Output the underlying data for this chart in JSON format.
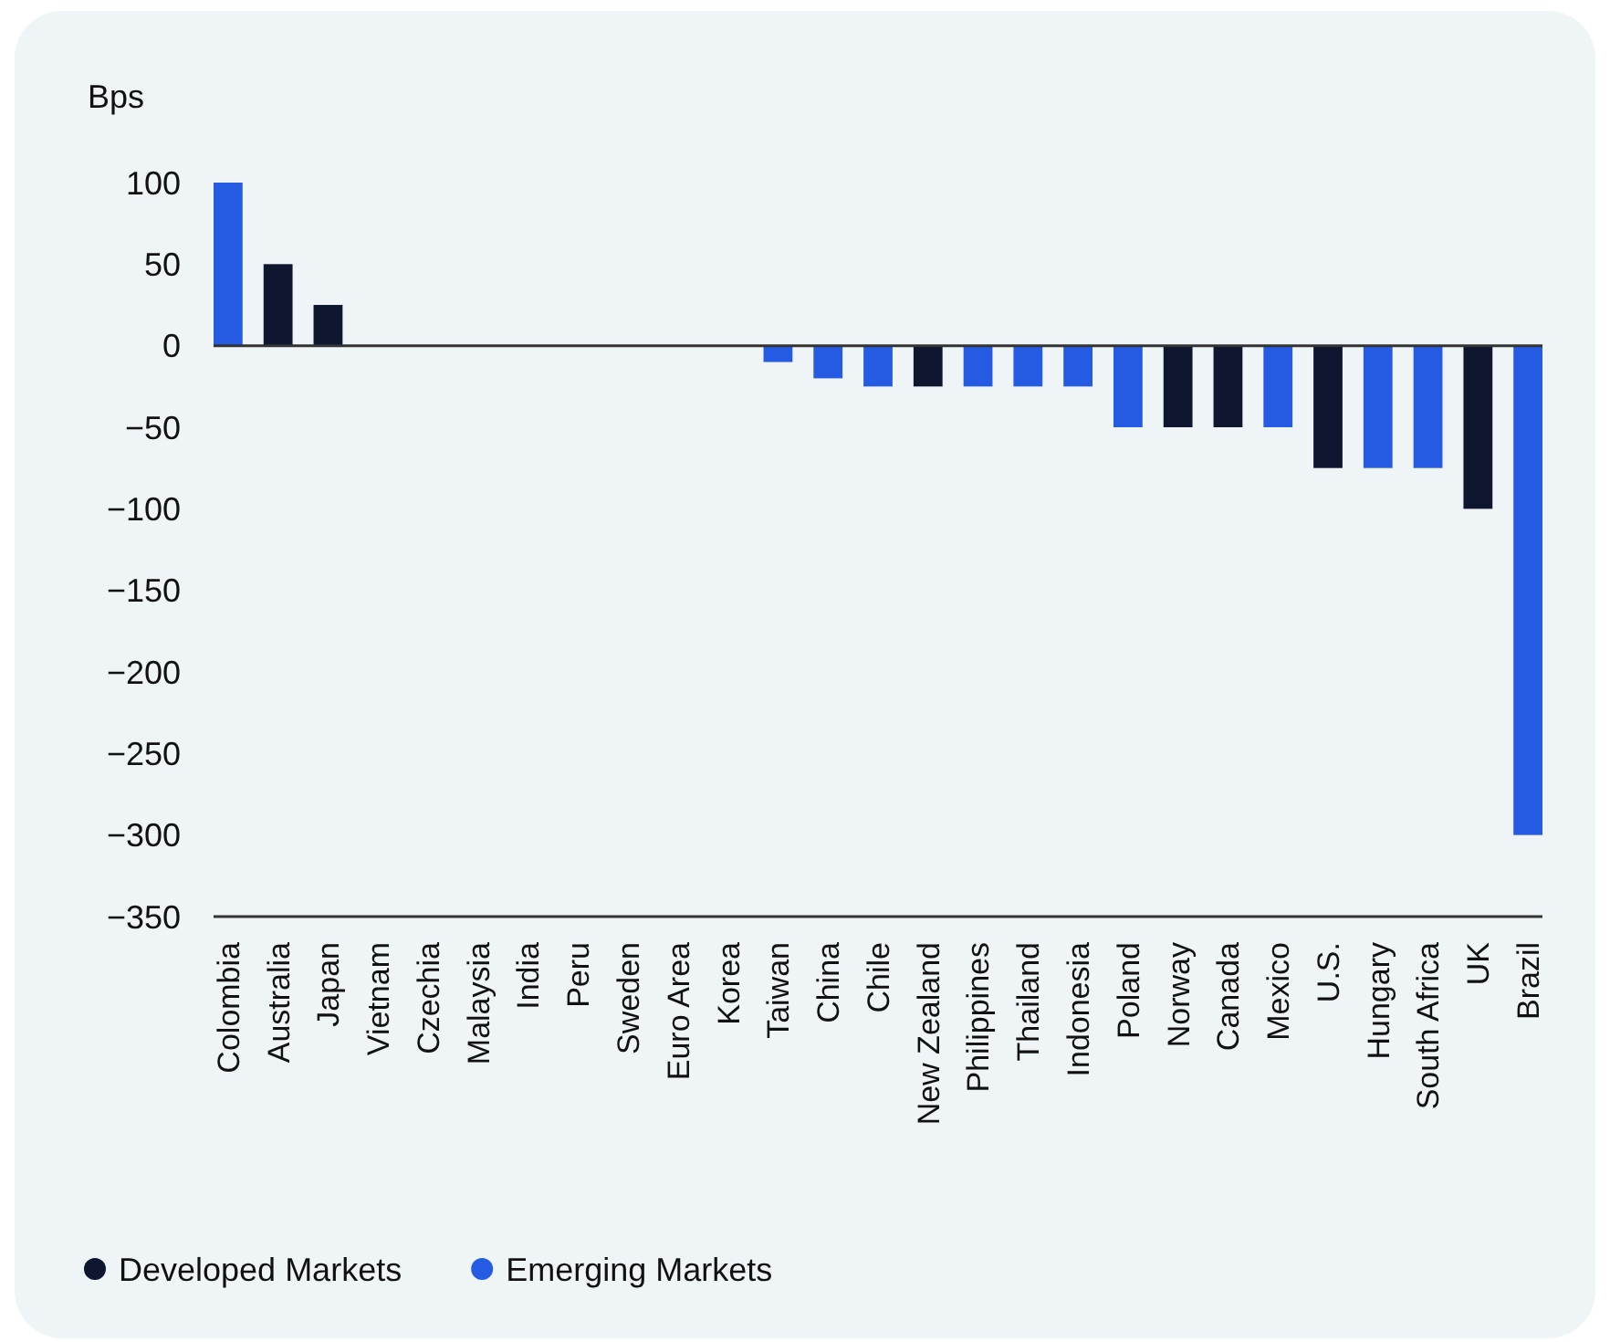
{
  "chart_data": {
    "type": "bar",
    "ylabel": "Bps",
    "categories": [
      "Colombia",
      "Australia",
      "Japan",
      "Vietnam",
      "Czechia",
      "Malaysia",
      "India",
      "Peru",
      "Sweden",
      "Euro Area",
      "Korea",
      "Taiwan",
      "China",
      "Chile",
      "New Zealand",
      "Philippines",
      "Thailand",
      "Indonesia",
      "Poland",
      "Norway",
      "Canada",
      "Mexico",
      "U.S.",
      "Hungary",
      "South Africa",
      "UK",
      "Brazil"
    ],
    "series": [
      {
        "name": "Developed Markets",
        "color": "#0e1630",
        "values": [
          null,
          50,
          25,
          null,
          null,
          null,
          null,
          null,
          0,
          0,
          null,
          null,
          null,
          null,
          -25,
          null,
          null,
          null,
          null,
          -50,
          -50,
          null,
          -75,
          null,
          null,
          -100,
          null
        ]
      },
      {
        "name": "Emerging Markets",
        "color": "#255be3",
        "values": [
          100,
          null,
          null,
          0,
          0,
          0,
          0,
          0,
          null,
          null,
          0,
          -10,
          -20,
          -25,
          null,
          -25,
          -25,
          -25,
          -50,
          null,
          null,
          -50,
          null,
          -75,
          -75,
          null,
          -300
        ]
      }
    ],
    "ylim": [
      -350,
      100
    ],
    "yticks": [
      100,
      50,
      0,
      -50,
      -100,
      -150,
      -200,
      -250,
      -300,
      -350
    ],
    "ref_lines": [
      {
        "axis": "y",
        "value": 0,
        "color": "#333333"
      }
    ],
    "grid": false,
    "legend": "bottom left"
  }
}
